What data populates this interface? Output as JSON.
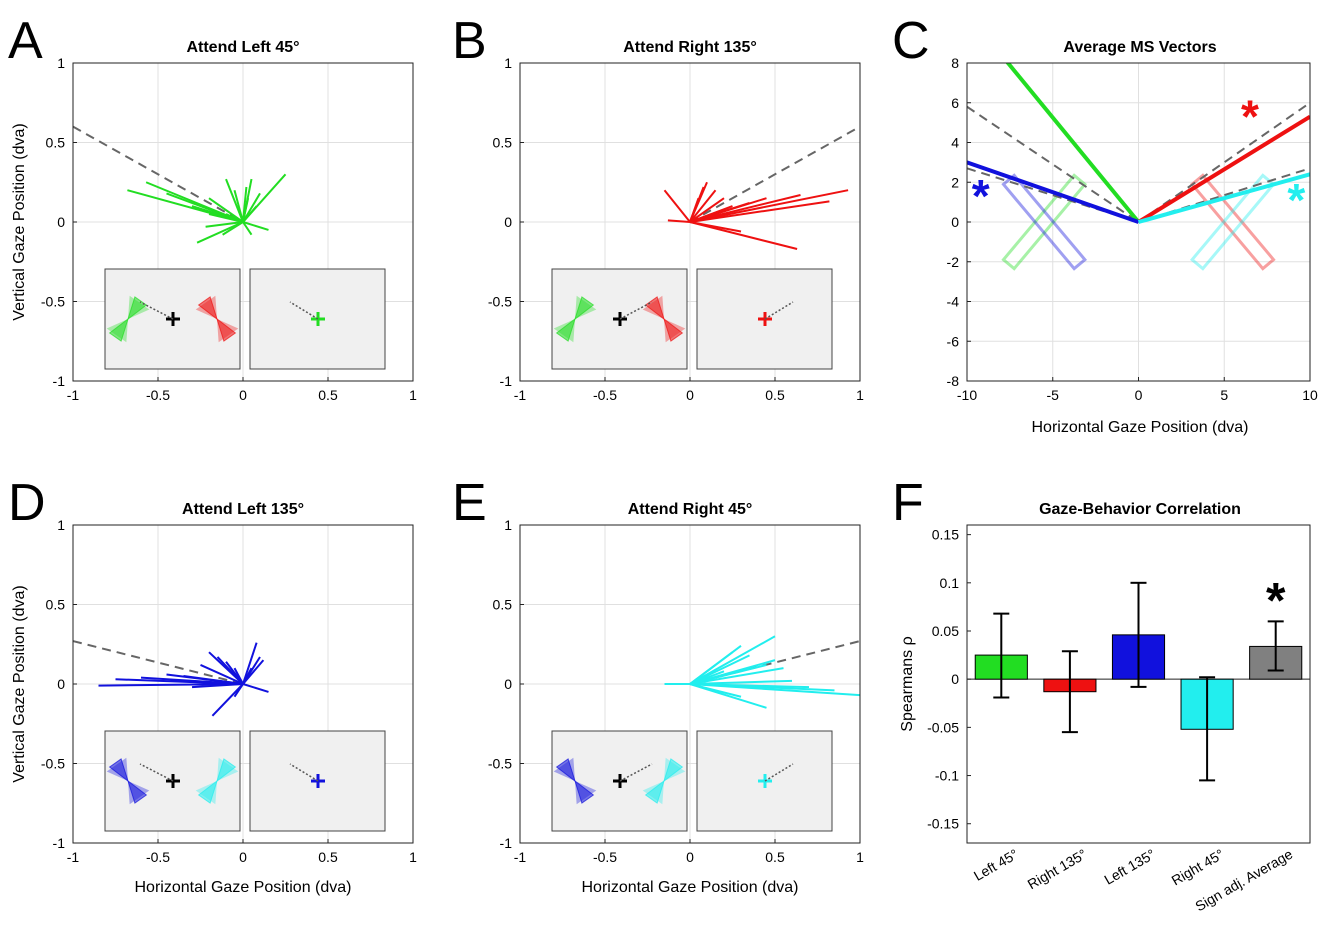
{
  "colors": {
    "green": "#22dd22",
    "red": "#ee1111",
    "blue": "#1111dd",
    "cyan": "#22eeee",
    "gray": "#808080",
    "dashed": "#666666"
  },
  "panels": {
    "A": {
      "letter": "A",
      "title": "Attend Left 45°"
    },
    "B": {
      "letter": "B",
      "title": "Attend Right 135°"
    },
    "C": {
      "letter": "C",
      "title": "Average MS Vectors"
    },
    "D": {
      "letter": "D",
      "title": "Attend Left 135°"
    },
    "E": {
      "letter": "E",
      "title": "Attend Right 45°"
    },
    "F": {
      "letter": "F",
      "title": "Gaze-Behavior Correlation"
    }
  },
  "axes": {
    "vertical_gaze": "Vertical Gaze Position (dva)",
    "horizontal_gaze": "Horizontal Gaze Position (dva)",
    "spearman": "Spearmans ρ"
  },
  "chart_data": [
    {
      "id": "A",
      "type": "line",
      "title": "Attend Left 45°",
      "xlim": [
        -1,
        1
      ],
      "ylim": [
        -1,
        1
      ],
      "xticks": [
        "-1",
        "-0.5",
        "0",
        "0.5",
        "1"
      ],
      "yticks": [
        "1",
        "0.5",
        "0",
        "-0.5",
        "-1"
      ],
      "color": "green",
      "dashed_line": [
        [
          -1,
          0.6
        ],
        [
          0,
          0
        ]
      ],
      "vectors": [
        [
          -0.68,
          0.2
        ],
        [
          -0.57,
          0.25
        ],
        [
          -0.45,
          0.18
        ],
        [
          -0.3,
          0.1
        ],
        [
          -0.2,
          0.05
        ],
        [
          -0.1,
          0.05
        ],
        [
          -0.2,
          0.15
        ],
        [
          -0.22,
          -0.03
        ],
        [
          -0.1,
          0.27
        ],
        [
          -0.05,
          0.2
        ],
        [
          0.02,
          0.22
        ],
        [
          0.05,
          0.27
        ],
        [
          0.1,
          0.18
        ],
        [
          0.25,
          0.3
        ],
        [
          0.08,
          0.1
        ],
        [
          0.15,
          -0.05
        ],
        [
          0.05,
          -0.08
        ],
        [
          -0.27,
          -0.13
        ],
        [
          -0.12,
          -0.08
        ],
        [
          0.03,
          0.15
        ]
      ],
      "inset": {
        "left_stim": "green",
        "right_stim": "red",
        "cue_color": "green"
      }
    },
    {
      "id": "B",
      "type": "line",
      "title": "Attend Right 135°",
      "xlim": [
        -1,
        1
      ],
      "ylim": [
        -1,
        1
      ],
      "xticks": [
        "-1",
        "-0.5",
        "0",
        "0.5",
        "1"
      ],
      "yticks": [
        "1",
        "0.5",
        "0",
        "-0.5",
        "-1"
      ],
      "color": "red",
      "dashed_line": [
        [
          0,
          0
        ],
        [
          1,
          0.6
        ]
      ],
      "vectors": [
        [
          -0.15,
          0.2
        ],
        [
          -0.13,
          0.01
        ],
        [
          0.93,
          0.2
        ],
        [
          0.82,
          0.13
        ],
        [
          0.65,
          0.17
        ],
        [
          0.45,
          0.15
        ],
        [
          0.35,
          0.12
        ],
        [
          0.25,
          0.1
        ],
        [
          0.2,
          0.15
        ],
        [
          0.15,
          0.2
        ],
        [
          0.1,
          0.25
        ],
        [
          0.08,
          0.22
        ],
        [
          0.63,
          -0.17
        ],
        [
          0.3,
          -0.06
        ],
        [
          0.05,
          0.15
        ],
        [
          0.18,
          0.07
        ]
      ],
      "inset": {
        "left_stim": "green",
        "right_stim": "red",
        "cue_color": "red"
      }
    },
    {
      "id": "C",
      "type": "line",
      "title": "Average MS Vectors",
      "xlabel": "Horizontal Gaze Position (dva)",
      "xlim": [
        -10,
        10
      ],
      "ylim": [
        -8,
        8
      ],
      "xticks": [
        "-10",
        "-5",
        "0",
        "5",
        "10"
      ],
      "yticks": [
        "8",
        "6",
        "4",
        "2",
        "0",
        "-2",
        "-4",
        "-6",
        "-8"
      ],
      "series": [
        {
          "name": "Attend Left 45°",
          "color": "green",
          "end": [
            -7.8,
            8.2
          ]
        },
        {
          "name": "Attend Right 135°",
          "color": "red",
          "end": [
            10,
            5.3
          ],
          "significant": true
        },
        {
          "name": "Attend Left 135°",
          "color": "blue",
          "end": [
            -10,
            3.0
          ],
          "significant": true
        },
        {
          "name": "Attend Right 45°",
          "color": "cyan",
          "end": [
            10,
            2.4
          ],
          "significant": true
        }
      ],
      "dashed_lines": [
        [
          [
            -10,
            5.8
          ],
          [
            0,
            0
          ]
        ],
        [
          [
            -10,
            2.7
          ],
          [
            0,
            0
          ]
        ],
        [
          [
            0,
            0
          ],
          [
            10,
            6.0
          ]
        ],
        [
          [
            0,
            0
          ],
          [
            10,
            2.7
          ]
        ]
      ],
      "significance_marker": "*"
    },
    {
      "id": "D",
      "type": "line",
      "title": "Attend Left 135°",
      "xlabel": "Horizontal Gaze Position (dva)",
      "xlim": [
        -1,
        1
      ],
      "ylim": [
        -1,
        1
      ],
      "xticks": [
        "-1",
        "-0.5",
        "0",
        "0.5",
        "1"
      ],
      "yticks": [
        "1",
        "0.5",
        "0",
        "-0.5",
        "-1"
      ],
      "color": "blue",
      "dashed_line": [
        [
          -1,
          0.27
        ],
        [
          0,
          0
        ]
      ],
      "vectors": [
        [
          -0.85,
          -0.01
        ],
        [
          -0.75,
          0.03
        ],
        [
          -0.6,
          0.04
        ],
        [
          -0.45,
          0.06
        ],
        [
          -0.35,
          0.05
        ],
        [
          -0.25,
          0.12
        ],
        [
          -0.2,
          0.2
        ],
        [
          -0.15,
          0.17
        ],
        [
          -0.1,
          0.14
        ],
        [
          -0.05,
          0.1
        ],
        [
          0.05,
          0.1
        ],
        [
          0.1,
          0.17
        ],
        [
          0.08,
          0.26
        ],
        [
          0.12,
          0.15
        ],
        [
          0.15,
          -0.05
        ],
        [
          -0.18,
          -0.2
        ],
        [
          -0.05,
          -0.08
        ],
        [
          -0.3,
          -0.02
        ]
      ],
      "inset": {
        "left_stim": "blue",
        "right_stim": "cyan",
        "cue_color": "blue"
      }
    },
    {
      "id": "E",
      "type": "line",
      "title": "Attend Right 45°",
      "xlabel": "Horizontal Gaze Position (dva)",
      "xlim": [
        -1,
        1
      ],
      "ylim": [
        -1,
        1
      ],
      "xticks": [
        "-1",
        "-0.5",
        "0",
        "0.5",
        "1"
      ],
      "yticks": [
        "1",
        "0.5",
        "0",
        "-0.5",
        "-1"
      ],
      "color": "cyan",
      "dashed_line": [
        [
          0,
          0
        ],
        [
          1,
          0.27
        ]
      ],
      "vectors": [
        [
          -0.15,
          0
        ],
        [
          1,
          -0.07
        ],
        [
          0.85,
          -0.04
        ],
        [
          0.7,
          -0.02
        ],
        [
          0.6,
          0.02
        ],
        [
          0.55,
          0.1
        ],
        [
          0.45,
          0.12
        ],
        [
          0.35,
          0.18
        ],
        [
          0.3,
          0.24
        ],
        [
          0.25,
          0.2
        ],
        [
          0.5,
          0.3
        ],
        [
          0.15,
          0.12
        ],
        [
          0.45,
          -0.15
        ],
        [
          0.3,
          -0.08
        ],
        [
          0.2,
          0.08
        ],
        [
          0.5,
          0.15
        ]
      ],
      "inset": {
        "left_stim": "blue",
        "right_stim": "cyan",
        "cue_color": "cyan"
      }
    },
    {
      "id": "F",
      "type": "bar",
      "title": "Gaze-Behavior Correlation",
      "ylabel": "Spearmans ρ",
      "ylim": [
        -0.17,
        0.16
      ],
      "yticks": [
        "0.15",
        "0.1",
        "0.05",
        "0",
        "-0.05",
        "-0.1",
        "-0.15"
      ],
      "categories": [
        "Left 45°",
        "Right 135°",
        "Left 135°",
        "Right 45°",
        "Sign adj. Average"
      ],
      "values": [
        0.025,
        -0.013,
        0.046,
        -0.052,
        0.034
      ],
      "error_low": [
        -0.019,
        -0.055,
        -0.008,
        -0.105,
        0.009
      ],
      "error_high": [
        0.068,
        0.029,
        0.1,
        0.002,
        0.06
      ],
      "bar_colors": [
        "green",
        "red",
        "blue",
        "cyan",
        "gray"
      ],
      "significant": [
        false,
        false,
        false,
        false,
        true
      ],
      "significance_marker": "*"
    }
  ]
}
